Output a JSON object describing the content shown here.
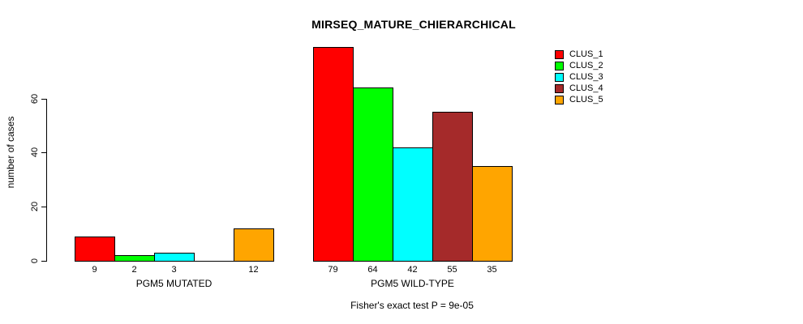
{
  "title": "MIRSEQ_MATURE_CHIERARCHICAL",
  "chart_data": {
    "type": "bar",
    "title": "MIRSEQ_MATURE_CHIERARCHICAL",
    "xlabel": "",
    "ylabel": "number of cases",
    "categories": [
      "PGM5 MUTATED",
      "PGM5 WILD-TYPE"
    ],
    "series": [
      {
        "name": "CLUS_1",
        "color": "#FF0000",
        "values": [
          9,
          79
        ]
      },
      {
        "name": "CLUS_2",
        "color": "#00FF00",
        "values": [
          2,
          64
        ]
      },
      {
        "name": "CLUS_3",
        "color": "#00FFFF",
        "values": [
          3,
          42
        ]
      },
      {
        "name": "CLUS_4",
        "color": "#A52A2A",
        "values": [
          0,
          55
        ]
      },
      {
        "name": "CLUS_5",
        "color": "#FFA500",
        "values": [
          12,
          35
        ]
      }
    ],
    "value_labels": [
      [
        "9",
        "2",
        "3",
        "",
        "12"
      ],
      [
        "79",
        "64",
        "42",
        "55",
        "35"
      ]
    ],
    "ylim": [
      0,
      60
    ],
    "yticks": [
      0,
      20,
      40,
      60
    ],
    "grid": false,
    "legend_position": "top-right",
    "legend_labels": [
      "CLUS_1",
      "CLUS_2",
      "CLUS_3",
      "CLUS_4",
      "CLUS_5"
    ],
    "footer": "Fisher's exact test P = 9e-05"
  }
}
